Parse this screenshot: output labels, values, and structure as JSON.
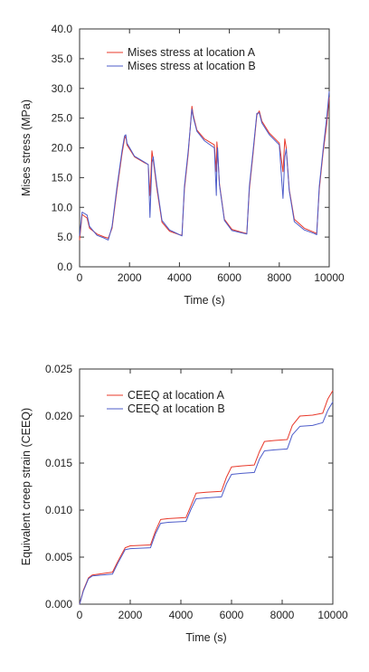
{
  "chart_data": [
    {
      "type": "line",
      "xlabel": "Time (s)",
      "ylabel": "Mises stress (MPa)",
      "xlim": [
        0,
        10000
      ],
      "ylim": [
        0,
        40
      ],
      "x_ticks": [
        0,
        2000,
        4000,
        6000,
        8000,
        10000
      ],
      "x_tick_labels": [
        "0",
        "2000",
        "4000",
        "6000",
        "8000",
        "10000"
      ],
      "y_ticks": [
        0,
        5,
        10,
        15,
        20,
        25,
        30,
        35,
        40
      ],
      "y_tick_labels": [
        "0.0",
        "5.0",
        "10.0",
        "15.0",
        "20.0",
        "25.0",
        "30.0",
        "35.0",
        "40.0"
      ],
      "grid": false,
      "legend_position": "top-left",
      "series": [
        {
          "name": "Mises stress at location A",
          "color": "#e8382a",
          "points": [
            [
              0,
              4.5
            ],
            [
              100,
              8.8
            ],
            [
              300,
              8.2
            ],
            [
              400,
              6.5
            ],
            [
              700,
              5.5
            ],
            [
              1000,
              5.0
            ],
            [
              1150,
              4.8
            ],
            [
              1300,
              6.5
            ],
            [
              1500,
              13
            ],
            [
              1700,
              19
            ],
            [
              1800,
              21.5
            ],
            [
              1850,
              22
            ],
            [
              1900,
              20.5
            ],
            [
              2200,
              18.5
            ],
            [
              2600,
              17.5
            ],
            [
              2750,
              17.2
            ],
            [
              2820,
              12
            ],
            [
              2900,
              19.5
            ],
            [
              2950,
              18
            ],
            [
              3100,
              13
            ],
            [
              3300,
              7.5
            ],
            [
              3600,
              6
            ],
            [
              4000,
              5.4
            ],
            [
              4100,
              5.3
            ],
            [
              4200,
              13
            ],
            [
              4350,
              19
            ],
            [
              4500,
              27
            ],
            [
              4550,
              25.5
            ],
            [
              4700,
              23
            ],
            [
              5000,
              21.5
            ],
            [
              5400,
              20.5
            ],
            [
              5480,
              16
            ],
            [
              5500,
              21
            ],
            [
              5530,
              19.5
            ],
            [
              5600,
              14
            ],
            [
              5800,
              8
            ],
            [
              6100,
              6.3
            ],
            [
              6500,
              5.8
            ],
            [
              6700,
              5.6
            ],
            [
              6800,
              13
            ],
            [
              6950,
              19
            ],
            [
              7100,
              25.5
            ],
            [
              7200,
              26.2
            ],
            [
              7300,
              24.5
            ],
            [
              7600,
              22.5
            ],
            [
              8000,
              20.8
            ],
            [
              8150,
              16
            ],
            [
              8220,
              21.5
            ],
            [
              8280,
              20
            ],
            [
              8400,
              13
            ],
            [
              8600,
              8
            ],
            [
              9000,
              6.5
            ],
            [
              9400,
              5.8
            ],
            [
              9500,
              5.6
            ],
            [
              9600,
              13
            ],
            [
              9750,
              19
            ],
            [
              9900,
              24
            ],
            [
              10000,
              28.5
            ]
          ]
        },
        {
          "name": "Mises stress at location B",
          "color": "#4d5cc9",
          "points": [
            [
              0,
              5.2
            ],
            [
              100,
              9.2
            ],
            [
              300,
              8.7
            ],
            [
              400,
              6.8
            ],
            [
              700,
              5.3
            ],
            [
              1000,
              4.8
            ],
            [
              1150,
              4.5
            ],
            [
              1300,
              6.8
            ],
            [
              1500,
              13.5
            ],
            [
              1700,
              19.5
            ],
            [
              1800,
              22
            ],
            [
              1850,
              22.2
            ],
            [
              1900,
              20.8
            ],
            [
              2200,
              18.6
            ],
            [
              2600,
              17.6
            ],
            [
              2750,
              17.2
            ],
            [
              2820,
              8.3
            ],
            [
              2900,
              17.5
            ],
            [
              2950,
              18.5
            ],
            [
              3100,
              13.5
            ],
            [
              3300,
              7.8
            ],
            [
              3600,
              6.2
            ],
            [
              4000,
              5.4
            ],
            [
              4100,
              5.2
            ],
            [
              4200,
              13.5
            ],
            [
              4350,
              19.5
            ],
            [
              4500,
              26.5
            ],
            [
              4550,
              25.2
            ],
            [
              4700,
              22.8
            ],
            [
              5000,
              21.2
            ],
            [
              5400,
              20
            ],
            [
              5480,
              12
            ],
            [
              5500,
              17
            ],
            [
              5530,
              20
            ],
            [
              5600,
              13.8
            ],
            [
              5800,
              7.8
            ],
            [
              6100,
              6.1
            ],
            [
              6500,
              5.7
            ],
            [
              6700,
              5.5
            ],
            [
              6800,
              13.5
            ],
            [
              6950,
              19.5
            ],
            [
              7100,
              25.8
            ],
            [
              7200,
              25.9
            ],
            [
              7300,
              24.2
            ],
            [
              7600,
              22.2
            ],
            [
              8000,
              20.5
            ],
            [
              8150,
              11.5
            ],
            [
              8220,
              18.5
            ],
            [
              8280,
              19.8
            ],
            [
              8400,
              12.8
            ],
            [
              8600,
              7.6
            ],
            [
              9000,
              6.2
            ],
            [
              9400,
              5.6
            ],
            [
              9500,
              5.4
            ],
            [
              9600,
              13.5
            ],
            [
              9750,
              19.5
            ],
            [
              9900,
              25
            ],
            [
              10000,
              29.5
            ]
          ]
        }
      ]
    },
    {
      "type": "line",
      "xlabel": "Time (s)",
      "ylabel": "Equivalent creep strain (CEEQ)",
      "xlim": [
        0,
        10000
      ],
      "ylim": [
        0,
        0.025
      ],
      "x_ticks": [
        0,
        2000,
        4000,
        6000,
        8000,
        10000
      ],
      "x_tick_labels": [
        "0",
        "2000",
        "4000",
        "6000",
        "8000",
        "10000"
      ],
      "y_ticks": [
        0,
        0.005,
        0.01,
        0.015,
        0.02,
        0.025
      ],
      "y_tick_labels": [
        "0.000",
        "0.005",
        "0.010",
        "0.015",
        "0.020",
        "0.025"
      ],
      "grid": false,
      "legend_position": "top-left",
      "series": [
        {
          "name": "CEEQ at location A",
          "color": "#e8382a",
          "points": [
            [
              0,
              0
            ],
            [
              150,
              0.0015
            ],
            [
              350,
              0.0028
            ],
            [
              500,
              0.0031
            ],
            [
              1300,
              0.0034
            ],
            [
              1500,
              0.0045
            ],
            [
              1800,
              0.006
            ],
            [
              2000,
              0.0062
            ],
            [
              2800,
              0.0063
            ],
            [
              3000,
              0.0078
            ],
            [
              3200,
              0.009
            ],
            [
              3500,
              0.0091
            ],
            [
              4200,
              0.0092
            ],
            [
              4400,
              0.0105
            ],
            [
              4600,
              0.0118
            ],
            [
              5000,
              0.0119
            ],
            [
              5600,
              0.012
            ],
            [
              5800,
              0.0135
            ],
            [
              6000,
              0.0146
            ],
            [
              6400,
              0.0147
            ],
            [
              6900,
              0.0148
            ],
            [
              7100,
              0.0162
            ],
            [
              7300,
              0.0173
            ],
            [
              7700,
              0.0174
            ],
            [
              8200,
              0.0175
            ],
            [
              8400,
              0.019
            ],
            [
              8700,
              0.02
            ],
            [
              9200,
              0.0201
            ],
            [
              9600,
              0.0203
            ],
            [
              9800,
              0.0218
            ],
            [
              10000,
              0.0227
            ]
          ]
        },
        {
          "name": "CEEQ at location B",
          "color": "#4d5cc9",
          "points": [
            [
              0,
              0
            ],
            [
              150,
              0.0014
            ],
            [
              350,
              0.0027
            ],
            [
              500,
              0.003
            ],
            [
              1300,
              0.0032
            ],
            [
              1500,
              0.0043
            ],
            [
              1800,
              0.0058
            ],
            [
              2000,
              0.0059
            ],
            [
              2800,
              0.006
            ],
            [
              3000,
              0.0075
            ],
            [
              3200,
              0.0086
            ],
            [
              3500,
              0.0087
            ],
            [
              4200,
              0.0088
            ],
            [
              4400,
              0.0101
            ],
            [
              4600,
              0.0112
            ],
            [
              5000,
              0.0113
            ],
            [
              5600,
              0.0114
            ],
            [
              5800,
              0.0128
            ],
            [
              6000,
              0.0138
            ],
            [
              6400,
              0.0139
            ],
            [
              6900,
              0.014
            ],
            [
              7100,
              0.0154
            ],
            [
              7300,
              0.0163
            ],
            [
              7700,
              0.0164
            ],
            [
              8200,
              0.0165
            ],
            [
              8400,
              0.018
            ],
            [
              8700,
              0.0189
            ],
            [
              9200,
              0.019
            ],
            [
              9600,
              0.0193
            ],
            [
              9800,
              0.0206
            ],
            [
              10000,
              0.0215
            ]
          ]
        }
      ]
    }
  ]
}
